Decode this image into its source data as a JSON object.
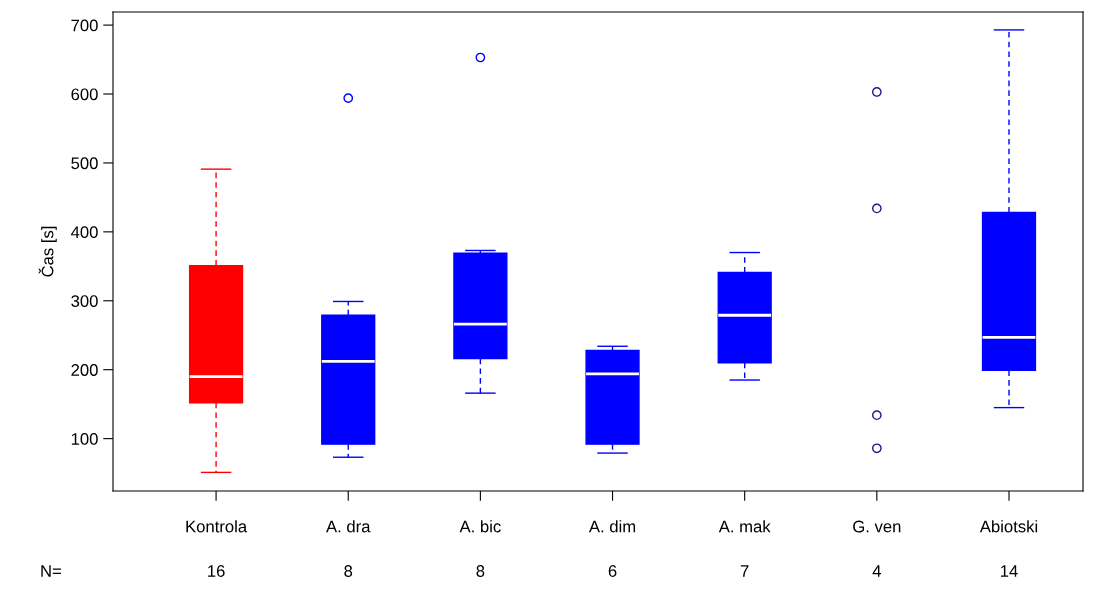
{
  "chart_data": {
    "type": "box",
    "ylabel": "Čas [s]",
    "categories": [
      "Kontrola",
      "A. dra",
      "A. bic",
      "A. dim",
      "A. mak",
      "G. ven",
      "Abiotski"
    ],
    "boxes": [
      {
        "low": 51,
        "q1": 152,
        "median": 190,
        "q3": 351,
        "high": 491
      },
      {
        "low": 73,
        "q1": 92,
        "median": 212,
        "q3": 279,
        "high": 299,
        "outliers": [
          594
        ]
      },
      {
        "low": 166,
        "q1": 216,
        "median": 266,
        "q3": 369,
        "high": 373,
        "outliers": [
          653
        ]
      },
      {
        "low": 79,
        "q1": 92,
        "median": 194,
        "q3": 228,
        "high": 234
      },
      {
        "low": 185,
        "q1": 210,
        "median": 279,
        "q3": 341,
        "high": 370
      },
      null,
      {
        "low": 145,
        "q1": 199,
        "median": 247,
        "q3": 428,
        "high": 693
      }
    ],
    "colors": [
      "#ff0000",
      "#0000ff",
      "#0000ff",
      "#0000ff",
      "#0000ff",
      "#0000ff",
      "#0000ff"
    ],
    "series": [
      {
        "type": "scatter",
        "x": [
          "G. ven",
          "G. ven",
          "G. ven",
          "G. ven"
        ],
        "values": [
          603,
          434,
          134,
          86
        ],
        "color": "#1a1a8c"
      }
    ],
    "marker": "circle",
    "line_style": "dashed",
    "ylim": [
      24,
      719
    ],
    "yticks": [
      100,
      200,
      300,
      400,
      500,
      600,
      700
    ],
    "grid": false,
    "legend": false,
    "annotations": [
      "N=",
      "16",
      "8",
      "8",
      "6",
      "7",
      "4",
      "14"
    ]
  }
}
